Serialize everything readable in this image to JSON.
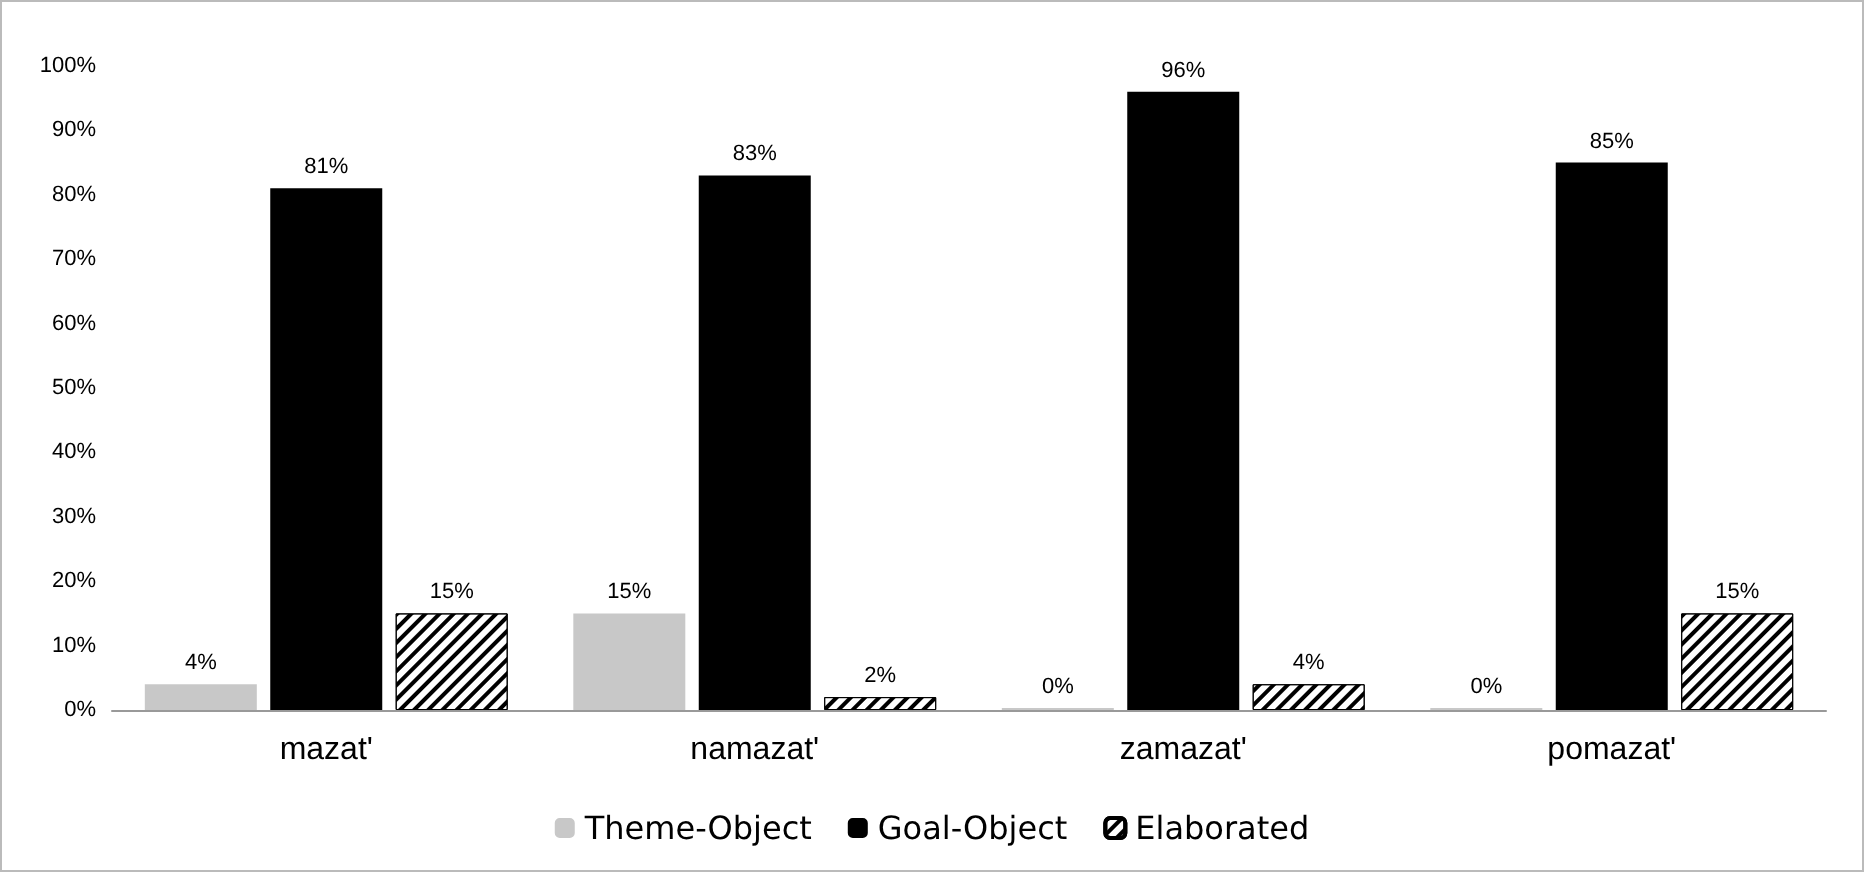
{
  "chart_data": {
    "type": "bar",
    "categories": [
      "mazat'",
      "namazat'",
      "zamazat'",
      "pomazat'"
    ],
    "series": [
      {
        "name": "Theme-Object",
        "color": "#c8c8c8",
        "values": [
          4,
          15,
          0,
          0
        ],
        "value_labels": [
          "4%",
          "15%",
          "0%",
          "0%"
        ]
      },
      {
        "name": "Goal-Object",
        "color": "#000000",
        "values": [
          81,
          83,
          96,
          85
        ],
        "value_labels": [
          "81%",
          "83%",
          "96%",
          "85%"
        ]
      },
      {
        "name": "Elaborated",
        "color": "#000000",
        "values": [
          15,
          2,
          4,
          15
        ],
        "value_labels": [
          "15%",
          "2%",
          "4%",
          "15%"
        ]
      }
    ],
    "ylim": [
      0,
      100
    ],
    "yticks": [
      {
        "value": 0,
        "label": "0%"
      },
      {
        "value": 10,
        "label": "10%"
      },
      {
        "value": 20,
        "label": "20%"
      },
      {
        "value": 30,
        "label": "30%"
      },
      {
        "value": 40,
        "label": "40%"
      },
      {
        "value": 50,
        "label": "50%"
      },
      {
        "value": 60,
        "label": "60%"
      },
      {
        "value": 70,
        "label": "70%"
      },
      {
        "value": 80,
        "label": "80%"
      },
      {
        "value": 90,
        "label": "90%"
      },
      {
        "value": 100,
        "label": "100%"
      }
    ],
    "grid": false,
    "legend": "bottom"
  }
}
